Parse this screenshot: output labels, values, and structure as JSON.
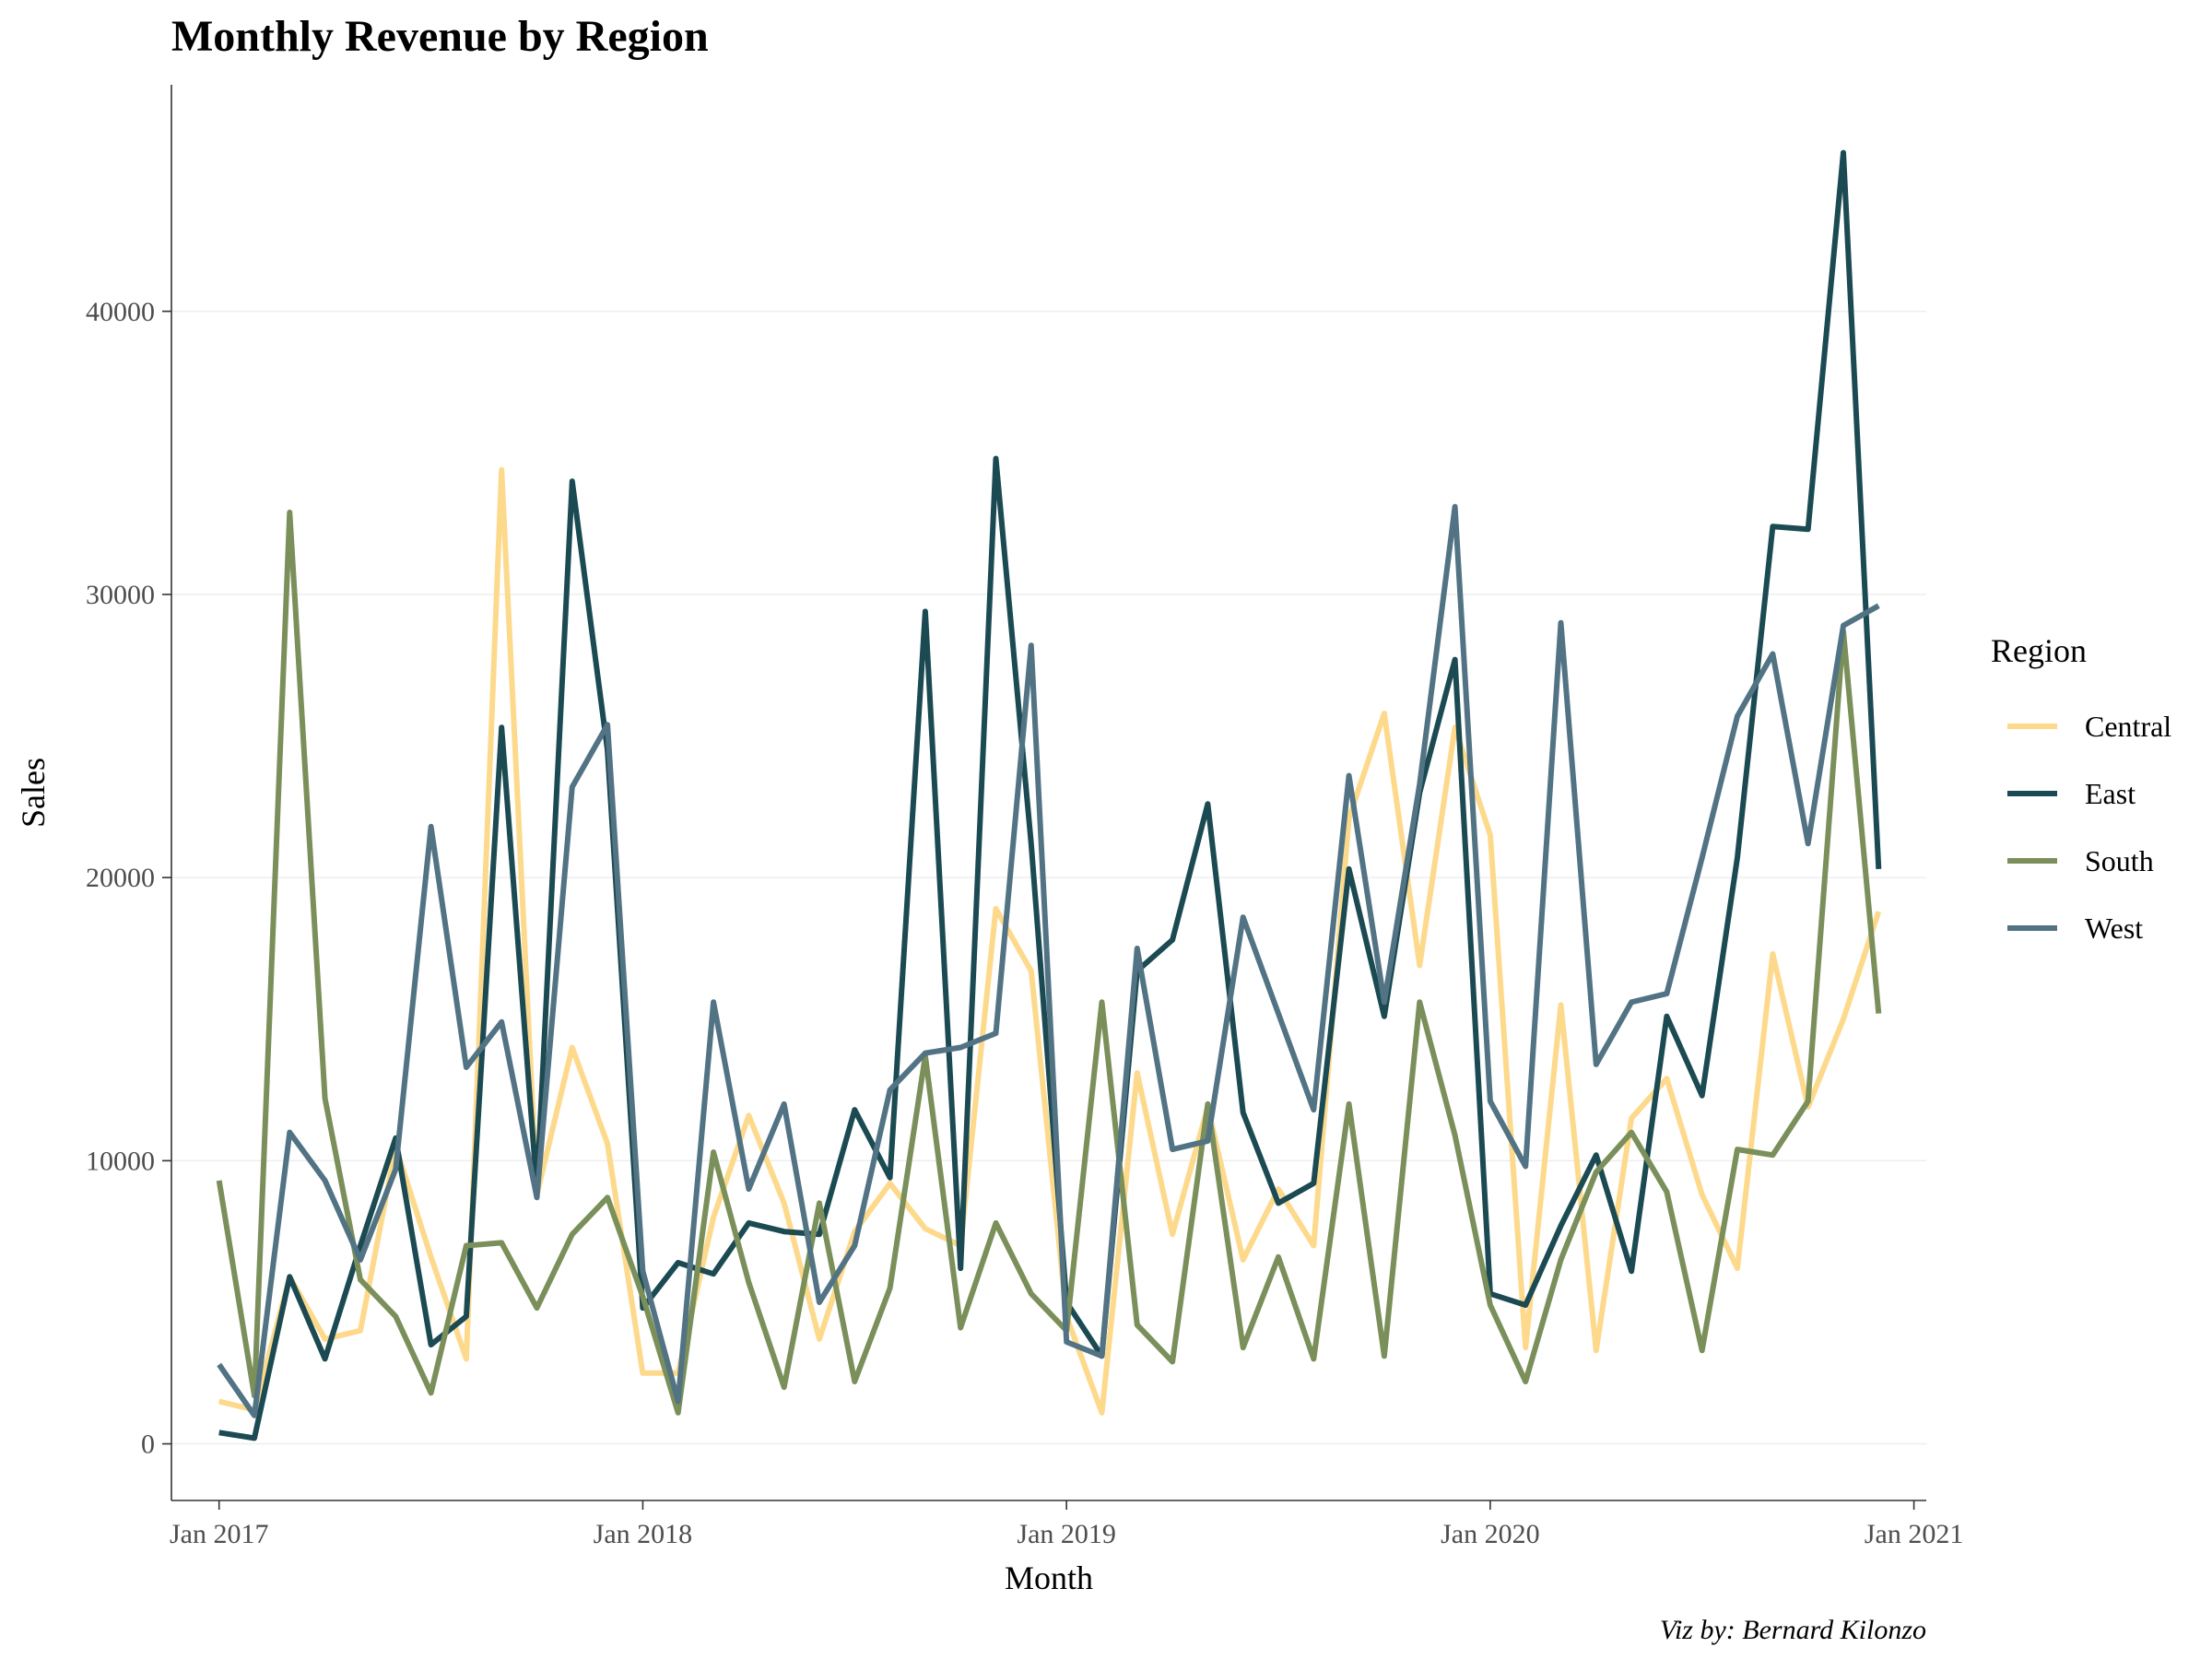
{
  "chart_data": {
    "type": "line",
    "title": "Monthly Revenue by Region",
    "xlabel": "Month",
    "ylabel": "Sales",
    "caption": "Viz by: Bernard Kilonzo",
    "xlim": [
      "2016-12",
      "2021-01"
    ],
    "ylim": [
      -2000,
      48000
    ],
    "x_ticks": [
      "2017-01",
      "2018-01",
      "2019-01",
      "2020-01",
      "2021-01"
    ],
    "x_tick_labels": [
      "Jan 2017",
      "Jan 2018",
      "Jan 2019",
      "Jan 2020",
      "Jan 2021"
    ],
    "y_ticks": [
      0,
      10000,
      20000,
      30000,
      40000
    ],
    "y_tick_labels": [
      "0",
      "10000",
      "20000",
      "30000",
      "40000"
    ],
    "grid": true,
    "legend": {
      "title": "Region",
      "position": "right"
    },
    "x": [
      "2017-01",
      "2017-02",
      "2017-03",
      "2017-04",
      "2017-05",
      "2017-06",
      "2017-07",
      "2017-08",
      "2017-09",
      "2017-10",
      "2017-11",
      "2017-12",
      "2018-01",
      "2018-02",
      "2018-03",
      "2018-04",
      "2018-05",
      "2018-06",
      "2018-07",
      "2018-08",
      "2018-09",
      "2018-10",
      "2018-11",
      "2018-12",
      "2019-01",
      "2019-02",
      "2019-03",
      "2019-04",
      "2019-05",
      "2019-06",
      "2019-07",
      "2019-08",
      "2019-09",
      "2019-10",
      "2019-11",
      "2019-12",
      "2020-01",
      "2020-02",
      "2020-03",
      "2020-04",
      "2020-05",
      "2020-06",
      "2020-07",
      "2020-08",
      "2020-09",
      "2020-10",
      "2020-11",
      "2020-12"
    ],
    "series": [
      {
        "name": "Central",
        "color": "#fdd98c",
        "values": [
          1500,
          1200,
          5900,
          3700,
          4000,
          10500,
          6600,
          3000,
          34400,
          8800,
          14000,
          10600,
          2500,
          2500,
          8000,
          11600,
          8500,
          3700,
          7500,
          9200,
          7600,
          7000,
          18900,
          16700,
          4500,
          1100,
          13100,
          7400,
          11900,
          6500,
          9000,
          7000,
          22100,
          25800,
          16900,
          25300,
          21500,
          3400,
          15500,
          3300,
          11500,
          12900,
          8800,
          6200,
          17300,
          11900,
          15000,
          18800
        ]
      },
      {
        "name": "East",
        "color": "#1b4a52",
        "values": [
          400,
          200,
          5900,
          3000,
          7000,
          10800,
          3500,
          4500,
          25300,
          9000,
          34000,
          24500,
          4800,
          6400,
          6000,
          7800,
          7500,
          7400,
          11800,
          9400,
          29400,
          6200,
          34800,
          21200,
          5000,
          3100,
          16700,
          17800,
          22600,
          11700,
          8500,
          9200,
          20300,
          15100,
          23000,
          27700,
          5300,
          4900,
          7700,
          10200,
          6100,
          15100,
          12300,
          20700,
          32400,
          32300,
          45600,
          20300
        ]
      },
      {
        "name": "South",
        "color": "#7a8f5a",
        "values": [
          9300,
          1700,
          32900,
          12200,
          5800,
          4500,
          1800,
          7000,
          7100,
          4800,
          7400,
          8700,
          5200,
          1100,
          10300,
          5700,
          2000,
          8500,
          2200,
          5500,
          13700,
          4100,
          7800,
          5300,
          4000,
          15600,
          4200,
          2900,
          12000,
          3400,
          6600,
          3000,
          12000,
          3100,
          15600,
          10900,
          4900,
          2200,
          6500,
          9600,
          11000,
          8900,
          3300,
          10400,
          10200,
          12100,
          28700,
          15200
        ]
      },
      {
        "name": "West",
        "color": "#527384",
        "values": [
          2800,
          1000,
          11000,
          9300,
          6500,
          9700,
          21800,
          13300,
          14900,
          8700,
          23200,
          25400,
          6100,
          1500,
          15600,
          9000,
          12000,
          5000,
          7000,
          12500,
          13800,
          14000,
          14500,
          28200,
          3600,
          3100,
          17500,
          10400,
          10700,
          18600,
          15200,
          11800,
          23600,
          15600,
          23300,
          33100,
          12100,
          9800,
          29000,
          13400,
          15600,
          15900,
          20700,
          25700,
          27900,
          21200,
          28900,
          29600
        ]
      }
    ]
  }
}
